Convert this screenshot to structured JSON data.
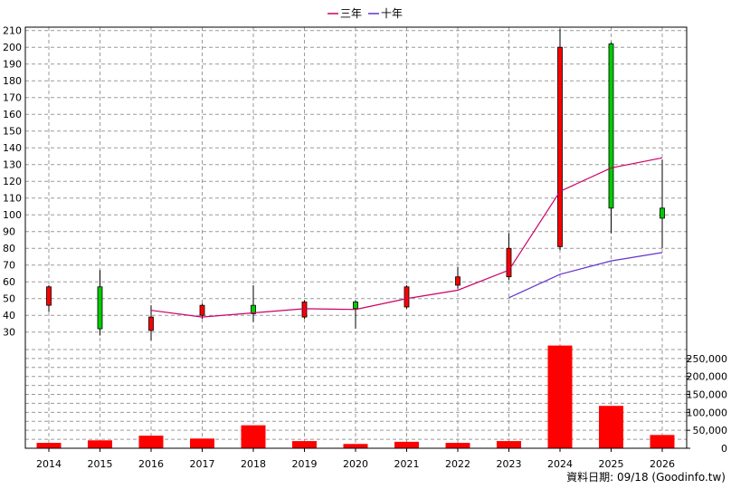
{
  "legend": {
    "items": [
      {
        "label": "三年",
        "color": "#cc0066"
      },
      {
        "label": "十年",
        "color": "#6633cc"
      }
    ]
  },
  "footer": "資料日期: 09/18 (Goodinfo.tw)",
  "chart_data": {
    "type": "candlestick+volume",
    "years": [
      "2014",
      "2015",
      "2016",
      "2017",
      "2018",
      "2019",
      "2020",
      "2021",
      "2022",
      "2023",
      "2024",
      "2025",
      "2026"
    ],
    "price_axis": {
      "min": 25,
      "max": 212,
      "ticks": [
        30,
        40,
        50,
        60,
        70,
        80,
        90,
        100,
        110,
        120,
        130,
        140,
        150,
        160,
        170,
        180,
        190,
        200,
        210
      ]
    },
    "candles": [
      {
        "year": "2014",
        "open": 46,
        "close": 57,
        "high": 58,
        "low": 42,
        "color": "#ff0000"
      },
      {
        "year": "2015",
        "open": 57,
        "close": 32,
        "high": 67,
        "low": 28,
        "color": "#00cc00"
      },
      {
        "year": "2016",
        "open": 31,
        "close": 39,
        "high": 46,
        "low": 25,
        "color": "#ff0000"
      },
      {
        "year": "2017",
        "open": 40,
        "close": 46,
        "high": 47,
        "low": 38,
        "color": "#ff0000"
      },
      {
        "year": "2018",
        "open": 46,
        "close": 41,
        "high": 58,
        "low": 36,
        "color": "#00cc00"
      },
      {
        "year": "2019",
        "open": 39,
        "close": 48,
        "high": 49,
        "low": 38,
        "color": "#ff0000"
      },
      {
        "year": "2020",
        "open": 48,
        "close": 44,
        "high": 49,
        "low": 32,
        "color": "#00cc00"
      },
      {
        "year": "2021",
        "open": 45,
        "close": 57,
        "high": 58,
        "low": 44,
        "color": "#ff0000"
      },
      {
        "year": "2022",
        "open": 58,
        "close": 63,
        "high": 69,
        "low": 56,
        "color": "#ff0000"
      },
      {
        "year": "2023",
        "open": 63,
        "close": 80,
        "high": 89,
        "low": 61,
        "color": "#ff0000"
      },
      {
        "year": "2024",
        "open": 81,
        "close": 200,
        "high": 211,
        "low": 79,
        "color": "#ff0000"
      },
      {
        "year": "2025",
        "open": 202,
        "close": 104,
        "high": 203,
        "low": 89,
        "color": "#00cc00"
      },
      {
        "year": "2026",
        "open": 104,
        "close": 98,
        "high": 133,
        "low": 80,
        "color": "#00cc00"
      }
    ],
    "series": [
      {
        "name": "三年",
        "color": "#cc0066",
        "x": [
          "2016",
          "2017",
          "2018",
          "2019",
          "2020",
          "2021",
          "2022",
          "2023",
          "2024",
          "2025",
          "2026"
        ],
        "values": [
          43,
          39,
          41.5,
          44,
          43.5,
          50,
          55,
          67,
          114,
          128,
          134
        ]
      },
      {
        "name": "十年",
        "color": "#6633cc",
        "x": [
          "2023",
          "2024",
          "2025",
          "2026"
        ],
        "values": [
          50.5,
          64.5,
          72.5,
          77.5
        ]
      }
    ],
    "volume_axis": {
      "min": 0,
      "max": 290000,
      "ticks": [
        0,
        50000,
        100000,
        150000,
        200000,
        250000
      ],
      "tick_labels": [
        "0",
        "50,000",
        "100,000",
        "150,000",
        "200,000",
        "250,000"
      ]
    },
    "volumes": [
      {
        "year": "2014",
        "value": 15000
      },
      {
        "year": "2015",
        "value": 22000
      },
      {
        "year": "2016",
        "value": 35000
      },
      {
        "year": "2017",
        "value": 27000
      },
      {
        "year": "2018",
        "value": 64000
      },
      {
        "year": "2019",
        "value": 20000
      },
      {
        "year": "2020",
        "value": 12000
      },
      {
        "year": "2021",
        "value": 18000
      },
      {
        "year": "2022",
        "value": 15000
      },
      {
        "year": "2023",
        "value": 20000
      },
      {
        "year": "2024",
        "value": 286000
      },
      {
        "year": "2025",
        "value": 118000
      },
      {
        "year": "2026",
        "value": 37000
      }
    ],
    "volume_color": "#ff0000",
    "grid": true,
    "legend_position": "top-center"
  }
}
